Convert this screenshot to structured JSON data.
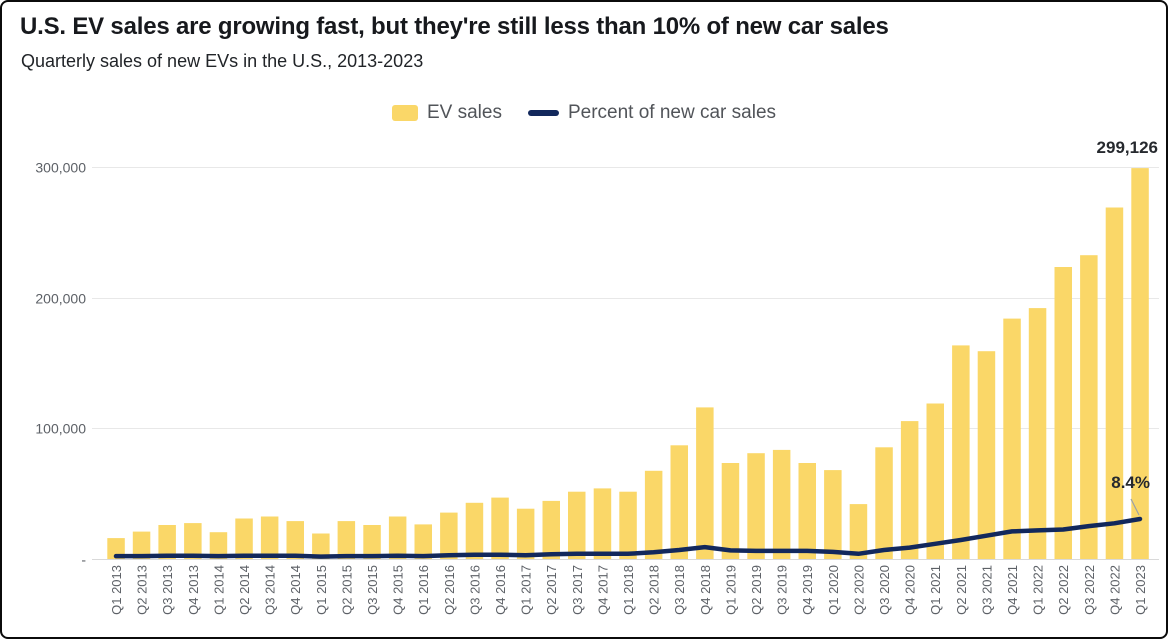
{
  "header": {
    "title": "U.S. EV sales are growing fast, but they're still less than 10% of new car sales",
    "subtitle": "Quarterly sales of new EVs in the U.S., 2013-2023"
  },
  "legend": {
    "items": [
      {
        "label": "EV sales",
        "swatch": "bar-swatch",
        "color": "#FAD768"
      },
      {
        "label": "Percent of new car sales",
        "swatch": "line-swatch",
        "color": "#12285C"
      }
    ]
  },
  "colors": {
    "bar": "#FAD768",
    "line": "#12285C",
    "grid": "#e8e8e8",
    "baseline": "#d9d9d9",
    "axis_text": "#5d6167",
    "leader": "#9ba1a8"
  },
  "chart_data": {
    "type": "combo",
    "title": "U.S. EV sales are growing fast, but they're still less than 10% of new car sales",
    "subtitle": "Quarterly sales of new EVs in the U.S., 2013-2023",
    "categories": [
      "Q1 2013",
      "Q2 2013",
      "Q3 2013",
      "Q4 2013",
      "Q1 2014",
      "Q2 2014",
      "Q3 2014",
      "Q4 2014",
      "Q1 2015",
      "Q2 2015",
      "Q3 2015",
      "Q4 2015",
      "Q1 2016",
      "Q2 2016",
      "Q3 2016",
      "Q4 2016",
      "Q1 2017",
      "Q2 2017",
      "Q3 2017",
      "Q4 2017",
      "Q1 2018",
      "Q2 2018",
      "Q3 2018",
      "Q4 2018",
      "Q1 2019",
      "Q2 2019",
      "Q3 2019",
      "Q4 2019",
      "Q1 2020",
      "Q2 2020",
      "Q3 2020",
      "Q4 2020",
      "Q1 2021",
      "Q2 2021",
      "Q3 2021",
      "Q4 2021",
      "Q1 2022",
      "Q2 2022",
      "Q3 2022",
      "Q4 2022",
      "Q1 2023"
    ],
    "series": [
      {
        "name": "EV sales",
        "type": "bar",
        "axis": "left",
        "color": "#FAD768",
        "values": [
          16000,
          21000,
          26000,
          27500,
          20500,
          31000,
          32500,
          29000,
          19500,
          29000,
          26000,
          32500,
          26500,
          35500,
          43000,
          47000,
          38500,
          44500,
          51500,
          54000,
          51500,
          67500,
          87000,
          116000,
          73500,
          81000,
          83500,
          73500,
          68000,
          42000,
          85500,
          105500,
          119000,
          163500,
          159000,
          184000,
          192000,
          223500,
          232500,
          269000,
          299126
        ]
      },
      {
        "name": "Percent of new car sales",
        "type": "line",
        "axis": "right-hidden",
        "color": "#12285C",
        "values": [
          0.6,
          0.6,
          0.7,
          0.7,
          0.6,
          0.7,
          0.7,
          0.7,
          0.5,
          0.6,
          0.6,
          0.7,
          0.6,
          0.8,
          0.9,
          0.9,
          0.8,
          1.0,
          1.1,
          1.1,
          1.1,
          1.4,
          1.9,
          2.5,
          1.8,
          1.7,
          1.7,
          1.7,
          1.5,
          1.1,
          1.9,
          2.4,
          3.2,
          4.0,
          4.9,
          5.8,
          6.0,
          6.2,
          6.9,
          7.5,
          8.4
        ]
      }
    ],
    "y_axis": {
      "ticks": [
        {
          "label": "300,000",
          "value": 300000
        },
        {
          "label": "200,000",
          "value": 200000
        },
        {
          "label": "100,000",
          "value": 100000
        },
        {
          "label": "-",
          "value": 0
        }
      ],
      "range": [
        0,
        310000
      ],
      "grid": true
    },
    "percent_axis": {
      "visible": false,
      "max_shown_value": 8.4
    },
    "legend_position": "top-center",
    "annotations": {
      "max_value_label": "299,126",
      "percent_value_label": "8.4%"
    }
  }
}
